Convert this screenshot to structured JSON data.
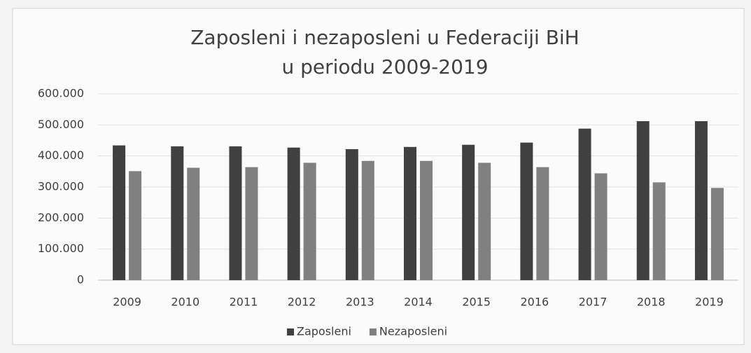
{
  "chart_data": {
    "type": "bar",
    "title": [
      "Zaposleni i nezaposleni u Federaciji BiH",
      "u periodu 2009-2019"
    ],
    "categories": [
      "2009",
      "2010",
      "2011",
      "2012",
      "2013",
      "2014",
      "2015",
      "2016",
      "2017",
      "2018",
      "2019"
    ],
    "series": [
      {
        "name": "Zaposleni",
        "color": "#404040",
        "values": [
          434000,
          431000,
          431000,
          427000,
          422000,
          429000,
          436000,
          443000,
          488000,
          512000,
          512000
        ]
      },
      {
        "name": "Nezaposleni",
        "color": "#808080",
        "values": [
          351000,
          362000,
          364000,
          378000,
          384000,
          384000,
          378000,
          364000,
          344000,
          315000,
          297000
        ]
      }
    ],
    "ylim": [
      0,
      600000
    ],
    "yticks": [
      0,
      {
        "value": 100000,
        "label": "100.000"
      },
      {
        "value": 200000,
        "label": "200.000"
      },
      {
        "value": 300000,
        "label": "300.000"
      },
      {
        "value": 400000,
        "label": "400.000"
      },
      {
        "value": 500000,
        "label": "500.000"
      },
      {
        "value": 600000,
        "label": "600.000"
      }
    ],
    "grid": true,
    "legend": "bottom"
  }
}
